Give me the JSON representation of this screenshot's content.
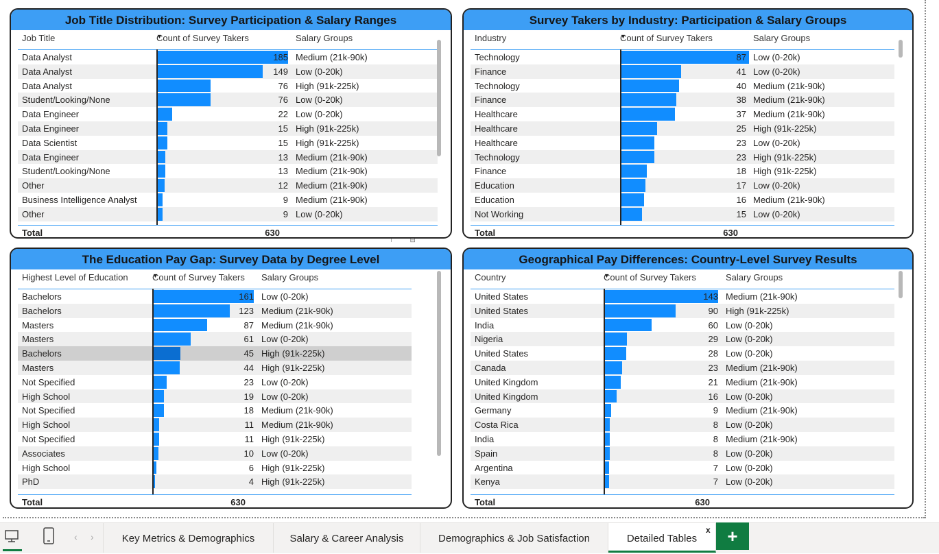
{
  "tables": [
    {
      "title": "Job Title Distribution: Survey Participation & Salary Ranges",
      "headers": [
        "Job Title",
        "Count of Survey Takers",
        "Salary Groups"
      ],
      "max": 185,
      "rows": [
        {
          "label": "Data Analyst",
          "value": "185",
          "group": "Medium (21k-90k)"
        },
        {
          "label": "Data Analyst",
          "value": "149",
          "group": "Low (0-20k)"
        },
        {
          "label": "Data Analyst",
          "value": "76",
          "group": "High (91k-225k)"
        },
        {
          "label": "Student/Looking/None",
          "value": "76",
          "group": "Low (0-20k)"
        },
        {
          "label": "Data Engineer",
          "value": "22",
          "group": "Low (0-20k)"
        },
        {
          "label": "Data Engineer",
          "value": "15",
          "group": "High (91k-225k)"
        },
        {
          "label": "Data Scientist",
          "value": "15",
          "group": "High (91k-225k)"
        },
        {
          "label": "Data Engineer",
          "value": "13",
          "group": "Medium (21k-90k)"
        },
        {
          "label": "Student/Looking/None",
          "value": "13",
          "group": "Medium (21k-90k)"
        },
        {
          "label": "Other",
          "value": "12",
          "group": "Medium (21k-90k)"
        },
        {
          "label": "Business Intelligence Analyst",
          "value": "9",
          "group": "Medium (21k-90k)"
        },
        {
          "label": "Other",
          "value": "9",
          "group": "Low (0-20k)"
        }
      ],
      "total_label": "Total",
      "total_value": "630"
    },
    {
      "title": "Survey Takers by Industry: Participation & Salary Groups",
      "headers": [
        "Industry",
        "Count of Survey Takers",
        "Salary Groups"
      ],
      "max": 87,
      "rows": [
        {
          "label": "Technology",
          "value": "87",
          "group": "Low (0-20k)"
        },
        {
          "label": "Finance",
          "value": "41",
          "group": "Low (0-20k)"
        },
        {
          "label": "Technology",
          "value": "40",
          "group": "Medium (21k-90k)"
        },
        {
          "label": "Finance",
          "value": "38",
          "group": "Medium (21k-90k)"
        },
        {
          "label": "Healthcare",
          "value": "37",
          "group": "Medium (21k-90k)"
        },
        {
          "label": "Healthcare",
          "value": "25",
          "group": "High (91k-225k)"
        },
        {
          "label": "Healthcare",
          "value": "23",
          "group": "Low (0-20k)"
        },
        {
          "label": "Technology",
          "value": "23",
          "group": "High (91k-225k)"
        },
        {
          "label": "Finance",
          "value": "18",
          "group": "High (91k-225k)"
        },
        {
          "label": "Education",
          "value": "17",
          "group": "Low (0-20k)"
        },
        {
          "label": "Education",
          "value": "16",
          "group": "Medium (21k-90k)"
        },
        {
          "label": "Not Working",
          "value": "15",
          "group": "Low (0-20k)"
        }
      ],
      "total_label": "Total",
      "total_value": "630"
    },
    {
      "title": "The Education Pay Gap: Survey Data by Degree Level",
      "headers": [
        "Highest Level of Education",
        "Count of Survey Takers",
        "Salary Groups"
      ],
      "max": 161,
      "highlight": 4,
      "rows": [
        {
          "label": "Bachelors",
          "value": "161",
          "group": "Low (0-20k)"
        },
        {
          "label": "Bachelors",
          "value": "123",
          "group": "Medium (21k-90k)"
        },
        {
          "label": "Masters",
          "value": "87",
          "group": "Medium (21k-90k)"
        },
        {
          "label": "Masters",
          "value": "61",
          "group": "Low (0-20k)"
        },
        {
          "label": "Bachelors",
          "value": "45",
          "group": "High (91k-225k)"
        },
        {
          "label": "Masters",
          "value": "44",
          "group": "High (91k-225k)"
        },
        {
          "label": "Not Specified",
          "value": "23",
          "group": "Low (0-20k)"
        },
        {
          "label": "High School",
          "value": "19",
          "group": "Low (0-20k)"
        },
        {
          "label": "Not Specified",
          "value": "18",
          "group": "Medium (21k-90k)"
        },
        {
          "label": "High School",
          "value": "11",
          "group": "Medium (21k-90k)"
        },
        {
          "label": "Not Specified",
          "value": "11",
          "group": "High (91k-225k)"
        },
        {
          "label": "Associates",
          "value": "10",
          "group": "Low (0-20k)"
        },
        {
          "label": "High School",
          "value": "6",
          "group": "High (91k-225k)"
        },
        {
          "label": "PhD",
          "value": "4",
          "group": "High (91k-225k)"
        }
      ],
      "total_label": "Total",
      "total_value": "630"
    },
    {
      "title": "Geographical Pay Differences: Country-Level Survey Results",
      "headers": [
        "Country",
        "Count of Survey Takers",
        "Salary Groups"
      ],
      "max": 143,
      "rows": [
        {
          "label": "United States",
          "value": "143",
          "group": "Medium (21k-90k)"
        },
        {
          "label": "United States",
          "value": "90",
          "group": "High (91k-225k)"
        },
        {
          "label": "India",
          "value": "60",
          "group": "Low (0-20k)"
        },
        {
          "label": "Nigeria",
          "value": "29",
          "group": "Low (0-20k)"
        },
        {
          "label": "United States",
          "value": "28",
          "group": "Low (0-20k)"
        },
        {
          "label": "Canada",
          "value": "23",
          "group": "Medium (21k-90k)"
        },
        {
          "label": "United Kingdom",
          "value": "21",
          "group": "Medium (21k-90k)"
        },
        {
          "label": "United Kingdom",
          "value": "16",
          "group": "Low (0-20k)"
        },
        {
          "label": "Germany",
          "value": "9",
          "group": "Medium (21k-90k)"
        },
        {
          "label": "Costa Rica",
          "value": "8",
          "group": "Low (0-20k)"
        },
        {
          "label": "India",
          "value": "8",
          "group": "Medium (21k-90k)"
        },
        {
          "label": "Spain",
          "value": "8",
          "group": "Low (0-20k)"
        },
        {
          "label": "Argentina",
          "value": "7",
          "group": "Low (0-20k)"
        },
        {
          "label": "Kenya",
          "value": "7",
          "group": "Low (0-20k)"
        }
      ],
      "total_label": "Total",
      "total_value": "630"
    }
  ],
  "tabs": [
    {
      "label": "Key Metrics & Demographics",
      "active": false
    },
    {
      "label": "Salary & Career Analysis",
      "active": false
    },
    {
      "label": "Demographics & Job Satisfaction",
      "active": false
    },
    {
      "label": "Detailed Tables",
      "active": true
    }
  ],
  "tab_close_glyph": "x",
  "add_page_glyph": "+",
  "icons": {
    "desktop": "desktop-icon",
    "phone": "phone-icon",
    "prev": "chevron-left-icon",
    "next": "chevron-right-icon"
  },
  "colors": {
    "header": "#3d9ef5",
    "bar": "#118dff",
    "tab_accent": "#107c41"
  }
}
